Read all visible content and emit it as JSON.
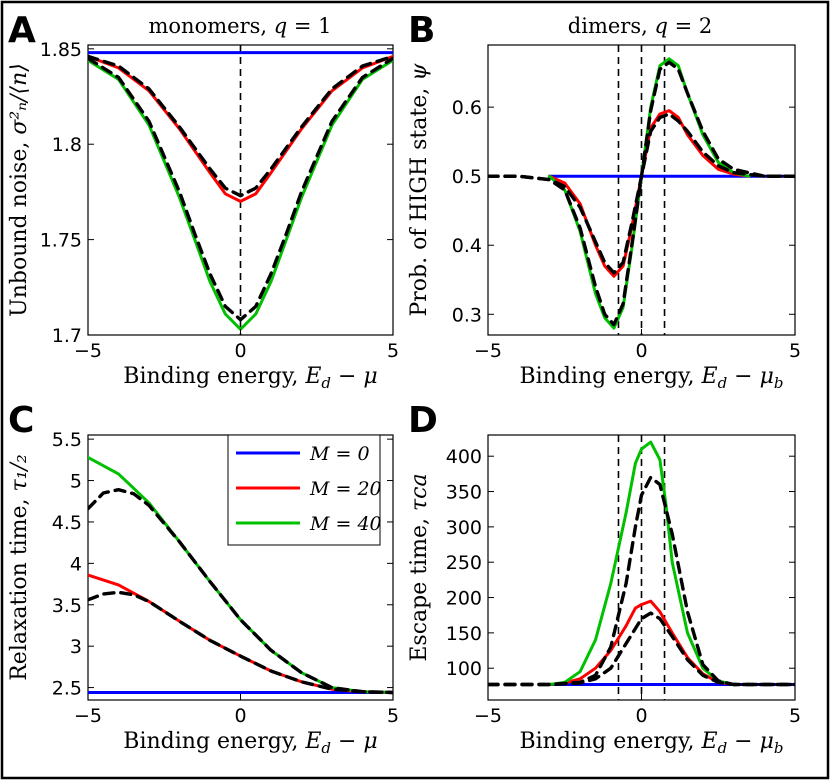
{
  "colors": {
    "M0": "#0000ff",
    "M20": "#ff0000",
    "M40": "#00c000",
    "approx": "#000000"
  },
  "legend": {
    "entries": [
      "M = 0",
      "M = 20",
      "M = 40"
    ]
  },
  "chart_data": [
    {
      "panel": "A",
      "type": "line",
      "title": "monomers, q = 1",
      "xlabel": "Binding energy, E_d − μ",
      "ylabel": "Unbound noise, σ²_n/⟨n⟩",
      "xlim": [
        -5,
        5
      ],
      "ylim": [
        1.7,
        1.852
      ],
      "xticks": [
        -5,
        0,
        5
      ],
      "xticklabels": [
        "−5",
        "0",
        "5"
      ],
      "yticks": [
        1.7,
        1.75,
        1.8,
        1.85
      ],
      "yticklabels": [
        "1.7",
        "1.75",
        "1.8",
        "1.85"
      ],
      "vlines": [
        0
      ],
      "series": [
        {
          "name": "M = 0",
          "color": "#0000ff",
          "style": "solid",
          "x": [
            -5,
            5
          ],
          "y": [
            1.848,
            1.848
          ]
        },
        {
          "name": "M = 20",
          "color": "#ff0000",
          "style": "solid",
          "x": [
            -5,
            -4,
            -3,
            -2,
            -1,
            -0.5,
            0,
            0.5,
            1,
            2,
            3,
            4,
            5
          ],
          "y": [
            1.846,
            1.84,
            1.828,
            1.808,
            1.785,
            1.774,
            1.77,
            1.774,
            1.785,
            1.808,
            1.828,
            1.84,
            1.846
          ]
        },
        {
          "name": "M = 40",
          "color": "#00c000",
          "style": "solid",
          "x": [
            -5,
            -4,
            -3,
            -2,
            -1.5,
            -1,
            -0.5,
            0,
            0.5,
            1,
            1.5,
            2,
            3,
            4,
            5
          ],
          "y": [
            1.844,
            1.834,
            1.81,
            1.772,
            1.75,
            1.728,
            1.711,
            1.703,
            1.711,
            1.728,
            1.75,
            1.772,
            1.81,
            1.834,
            1.844
          ]
        },
        {
          "name": "approx 20",
          "color": "#000000",
          "style": "dashed",
          "x": [
            -5,
            -4,
            -3,
            -2,
            -1,
            -0.5,
            0,
            0.5,
            1,
            2,
            3,
            4,
            5
          ],
          "y": [
            1.846,
            1.841,
            1.829,
            1.809,
            1.787,
            1.777,
            1.773,
            1.777,
            1.787,
            1.809,
            1.829,
            1.841,
            1.846
          ]
        },
        {
          "name": "approx 40",
          "color": "#000000",
          "style": "dashed",
          "x": [
            -5,
            -4,
            -3,
            -2,
            -1.5,
            -1,
            -0.5,
            0,
            0.5,
            1,
            1.5,
            2,
            3,
            4,
            5
          ],
          "y": [
            1.845,
            1.835,
            1.812,
            1.775,
            1.753,
            1.732,
            1.715,
            1.708,
            1.715,
            1.732,
            1.753,
            1.775,
            1.812,
            1.835,
            1.845
          ]
        }
      ]
    },
    {
      "panel": "B",
      "type": "line",
      "title": "dimers, q = 2",
      "xlabel": "Binding energy, E_d − μ_b",
      "ylabel": "Prob. of HIGH state, ψ",
      "xlim": [
        -5,
        5
      ],
      "ylim": [
        0.27,
        0.69
      ],
      "xticks": [
        -5,
        0,
        5
      ],
      "xticklabels": [
        "−5",
        "0",
        "5"
      ],
      "yticks": [
        0.3,
        0.4,
        0.5,
        0.6
      ],
      "yticklabels": [
        "0.3",
        "0.4",
        "0.5",
        "0.6"
      ],
      "vlines": [
        -0.75,
        0,
        0.75
      ],
      "series": [
        {
          "name": "M = 0",
          "color": "#0000ff",
          "style": "solid",
          "x": [
            -3,
            5
          ],
          "y": [
            0.5,
            0.5
          ]
        },
        {
          "name": "M = 20",
          "color": "#ff0000",
          "style": "solid",
          "x": [
            -3,
            -2.5,
            -2,
            -1.5,
            -1.2,
            -0.9,
            -0.6,
            -0.3,
            0,
            0.3,
            0.6,
            0.9,
            1.2,
            1.5,
            2,
            2.5,
            3,
            3.5
          ],
          "y": [
            0.5,
            0.49,
            0.46,
            0.4,
            0.37,
            0.355,
            0.37,
            0.43,
            0.5,
            0.57,
            0.59,
            0.595,
            0.585,
            0.56,
            0.53,
            0.51,
            0.503,
            0.5
          ]
        },
        {
          "name": "M = 40",
          "color": "#00c000",
          "style": "solid",
          "x": [
            -3,
            -2.5,
            -2,
            -1.5,
            -1.2,
            -0.9,
            -0.6,
            -0.3,
            0,
            0.3,
            0.6,
            0.9,
            1.2,
            1.5,
            2,
            2.5,
            3,
            3.5
          ],
          "y": [
            0.5,
            0.48,
            0.42,
            0.33,
            0.295,
            0.28,
            0.31,
            0.4,
            0.5,
            0.6,
            0.66,
            0.67,
            0.66,
            0.62,
            0.56,
            0.52,
            0.505,
            0.5
          ]
        },
        {
          "name": "approx 20",
          "color": "#000000",
          "style": "dashed",
          "x": [
            -5,
            -4,
            -3,
            -2.5,
            -2,
            -1.5,
            -1.2,
            -0.9,
            -0.6,
            -0.3,
            0,
            0.3,
            0.6,
            0.9,
            1.2,
            1.5,
            2,
            2.5,
            3,
            4,
            5
          ],
          "y": [
            0.5,
            0.5,
            0.495,
            0.485,
            0.455,
            0.405,
            0.375,
            0.36,
            0.375,
            0.435,
            0.5,
            0.565,
            0.585,
            0.59,
            0.58,
            0.565,
            0.535,
            0.515,
            0.505,
            0.5,
            0.5
          ]
        },
        {
          "name": "approx 40",
          "color": "#000000",
          "style": "dashed",
          "x": [
            -5,
            -4,
            -3,
            -2.5,
            -2,
            -1.5,
            -1.2,
            -0.9,
            -0.6,
            -0.3,
            0,
            0.3,
            0.6,
            0.9,
            1.2,
            1.5,
            2,
            2.5,
            3,
            4,
            5
          ],
          "y": [
            0.5,
            0.5,
            0.495,
            0.48,
            0.425,
            0.34,
            0.3,
            0.285,
            0.315,
            0.405,
            0.5,
            0.595,
            0.655,
            0.665,
            0.655,
            0.62,
            0.565,
            0.525,
            0.51,
            0.5,
            0.5
          ]
        }
      ]
    },
    {
      "panel": "C",
      "type": "line",
      "title": "",
      "xlabel": "Binding energy, E_d − μ",
      "ylabel": "Relaxation time, τ_1/2",
      "xlim": [
        -5,
        5
      ],
      "ylim": [
        2.35,
        5.55
      ],
      "xticks": [
        -5,
        0,
        5
      ],
      "xticklabels": [
        "−5",
        "0",
        "5"
      ],
      "yticks": [
        2.5,
        3,
        3.5,
        4,
        4.5,
        5,
        5.5
      ],
      "yticklabels": [
        "2.5",
        "3",
        "3.5",
        "4",
        "4.5",
        "5",
        "5.5"
      ],
      "vlines": [],
      "legend_loc": "upper right",
      "series": [
        {
          "name": "M = 0",
          "color": "#0000ff",
          "style": "solid",
          "x": [
            -5,
            5
          ],
          "y": [
            2.44,
            2.44
          ]
        },
        {
          "name": "M = 20",
          "color": "#ff0000",
          "style": "solid",
          "x": [
            -5,
            -4,
            -3,
            -2,
            -1,
            0,
            1,
            2,
            3,
            4,
            5
          ],
          "y": [
            3.86,
            3.74,
            3.54,
            3.3,
            3.07,
            2.88,
            2.7,
            2.57,
            2.48,
            2.45,
            2.44
          ]
        },
        {
          "name": "M = 40",
          "color": "#00c000",
          "style": "solid",
          "x": [
            -5,
            -4,
            -3,
            -2,
            -1,
            0,
            1,
            2,
            3,
            4,
            5
          ],
          "y": [
            5.28,
            5.08,
            4.73,
            4.26,
            3.78,
            3.32,
            2.95,
            2.68,
            2.5,
            2.45,
            2.44
          ]
        },
        {
          "name": "approx 20",
          "color": "#000000",
          "style": "dashed",
          "x": [
            -5,
            -4.5,
            -4,
            -3.5,
            -3,
            -2,
            -1,
            0,
            1,
            2,
            3,
            4,
            5
          ],
          "y": [
            3.56,
            3.63,
            3.65,
            3.62,
            3.54,
            3.3,
            3.07,
            2.88,
            2.7,
            2.57,
            2.48,
            2.45,
            2.44
          ]
        },
        {
          "name": "approx 40",
          "color": "#000000",
          "style": "dashed",
          "x": [
            -5,
            -4.5,
            -4,
            -3.5,
            -3,
            -2,
            -1,
            0,
            1,
            2,
            3,
            4,
            5
          ],
          "y": [
            4.66,
            4.85,
            4.89,
            4.84,
            4.7,
            4.26,
            3.78,
            3.32,
            2.95,
            2.68,
            2.5,
            2.45,
            2.44
          ]
        }
      ]
    },
    {
      "panel": "D",
      "type": "line",
      "title": "",
      "xlabel": "Binding energy, E_d − μ_b",
      "ylabel": "Escape time, τ_ca",
      "xlim": [
        -5,
        5
      ],
      "ylim": [
        55,
        430
      ],
      "xticks": [
        -5,
        0,
        5
      ],
      "xticklabels": [
        "−5",
        "0",
        "5"
      ],
      "yticks": [
        100,
        150,
        200,
        250,
        300,
        350,
        400
      ],
      "yticklabels": [
        "100",
        "150",
        "200",
        "250",
        "300",
        "350",
        "400"
      ],
      "vlines": [
        -0.75,
        0,
        0.75
      ],
      "series": [
        {
          "name": "M = 0",
          "color": "#0000ff",
          "style": "solid",
          "x": [
            -3,
            5
          ],
          "y": [
            77,
            77
          ]
        },
        {
          "name": "M = 20",
          "color": "#ff0000",
          "style": "solid",
          "x": [
            -3,
            -2.5,
            -2,
            -1.5,
            -1,
            -0.5,
            -0.2,
            0,
            0.3,
            0.6,
            1,
            1.5,
            2,
            2.5,
            3
          ],
          "y": [
            77,
            79,
            85,
            100,
            125,
            160,
            185,
            190,
            195,
            180,
            150,
            115,
            92,
            80,
            77
          ]
        },
        {
          "name": "M = 40",
          "color": "#00c000",
          "style": "solid",
          "x": [
            -3,
            -2.5,
            -2,
            -1.5,
            -1,
            -0.5,
            -0.2,
            0,
            0.3,
            0.6,
            0.8,
            1,
            1.5,
            2,
            2.5,
            3
          ],
          "y": [
            77,
            80,
            95,
            140,
            220,
            320,
            390,
            410,
            420,
            395,
            330,
            250,
            150,
            100,
            82,
            77
          ]
        },
        {
          "name": "approx 20",
          "color": "#000000",
          "style": "dashed",
          "x": [
            -5,
            -3,
            -2,
            -1.5,
            -1,
            -0.5,
            0,
            0.3,
            0.6,
            1,
            1.5,
            2,
            2.5,
            3,
            5
          ],
          "y": [
            77,
            77,
            79,
            85,
            100,
            135,
            170,
            178,
            170,
            145,
            112,
            90,
            80,
            77,
            77
          ]
        },
        {
          "name": "approx 40",
          "color": "#000000",
          "style": "dashed",
          "x": [
            -5,
            -3,
            -2,
            -1.5,
            -1,
            -0.5,
            -0.2,
            0,
            0.3,
            0.6,
            1,
            1.5,
            2,
            2.5,
            3,
            5
          ],
          "y": [
            77,
            77,
            80,
            90,
            130,
            220,
            300,
            345,
            370,
            360,
            290,
            180,
            105,
            82,
            77,
            77
          ]
        }
      ]
    }
  ],
  "panels": [
    {
      "letter": "A",
      "title_plain": "monomers, ",
      "title_var": "q",
      "title_val": " = 1",
      "xlabel_plain": "Binding energy, ",
      "xlabel_math": "E",
      "xlabel_sub": "d",
      "xlabel_rest": " − μ",
      "xlabel_sub2": "",
      "ylabel_plain": "Unbound noise, ",
      "ylabel_math": "σ²ₙ/⟨n⟩"
    },
    {
      "letter": "B",
      "title_plain": "dimers, ",
      "title_var": "q",
      "title_val": " = 2",
      "xlabel_plain": "Binding energy, ",
      "xlabel_math": "E",
      "xlabel_sub": "d",
      "xlabel_rest": " − μ",
      "xlabel_sub2": "b",
      "ylabel_plain": "Prob. of HIGH state, ",
      "ylabel_math": "ψ"
    },
    {
      "letter": "C",
      "title_plain": "",
      "title_var": "",
      "title_val": "",
      "xlabel_plain": "Binding energy, ",
      "xlabel_math": "E",
      "xlabel_sub": "d",
      "xlabel_rest": " − μ",
      "xlabel_sub2": "",
      "ylabel_plain": "Relaxation time, ",
      "ylabel_math": "τ₁/₂"
    },
    {
      "letter": "D",
      "title_plain": "",
      "title_var": "",
      "title_val": "",
      "xlabel_plain": "Binding energy, ",
      "xlabel_math": "E",
      "xlabel_sub": "d",
      "xlabel_rest": " − μ",
      "xlabel_sub2": "b",
      "ylabel_plain": "Escape time, ",
      "ylabel_math": "τca"
    }
  ]
}
